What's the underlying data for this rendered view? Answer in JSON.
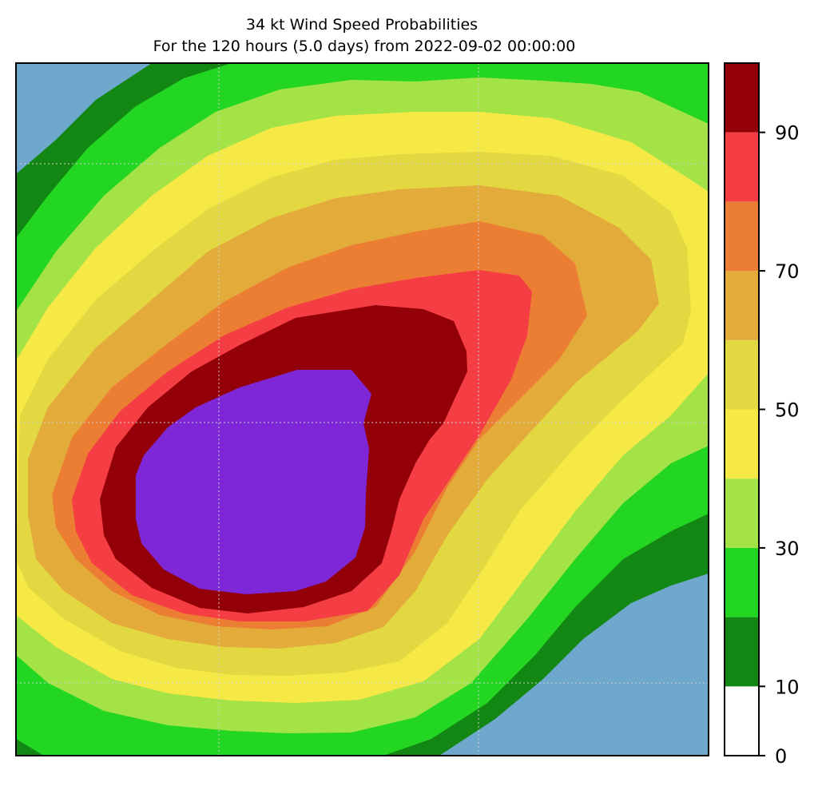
{
  "chart_data": {
    "type": "filled-contour",
    "title": "34 kt Wind Speed Probabilities",
    "subtitle": "For the 120 hours (5.0 days) from 2022-09-02 00:00:00",
    "xlabel": "",
    "ylabel": "",
    "grid": true,
    "background_color": "#6ea8cc",
    "levels": [
      0,
      10,
      20,
      30,
      40,
      50,
      60,
      70,
      80,
      90,
      100
    ],
    "level_colors": [
      "#ffffff",
      "#138713",
      "#22d622",
      "#a4e346",
      "#f7e945",
      "#e4d842",
      "#e3ab3a",
      "#ec7e33",
      "#f43e43",
      "#940008",
      "#7d27d7"
    ],
    "filled_bands": [
      {
        "min": 0,
        "max": 10,
        "color": "#6ea8cc"
      },
      {
        "min": 10,
        "max": 20,
        "color": "#138713"
      },
      {
        "min": 20,
        "max": 30,
        "color": "#22d622"
      },
      {
        "min": 30,
        "max": 40,
        "color": "#a4e346"
      },
      {
        "min": 40,
        "max": 50,
        "color": "#f7e945"
      },
      {
        "min": 50,
        "max": 60,
        "color": "#e4d842"
      },
      {
        "min": 60,
        "max": 70,
        "color": "#e3ab3a"
      },
      {
        "min": 70,
        "max": 80,
        "color": "#ec7e33"
      },
      {
        "min": 80,
        "max": 90,
        "color": "#f43e43"
      },
      {
        "min": 90,
        "max": 100,
        "color": "#940008"
      },
      {
        "min": 100,
        "max": 101,
        "color": "#7d27d7"
      }
    ],
    "colorbar": {
      "orientation": "vertical",
      "range": [
        0,
        100
      ],
      "ticks": [
        0,
        10,
        30,
        50,
        70,
        90
      ],
      "tick_labels": [
        "0",
        "10",
        "30",
        "50",
        "70",
        "90"
      ]
    }
  }
}
